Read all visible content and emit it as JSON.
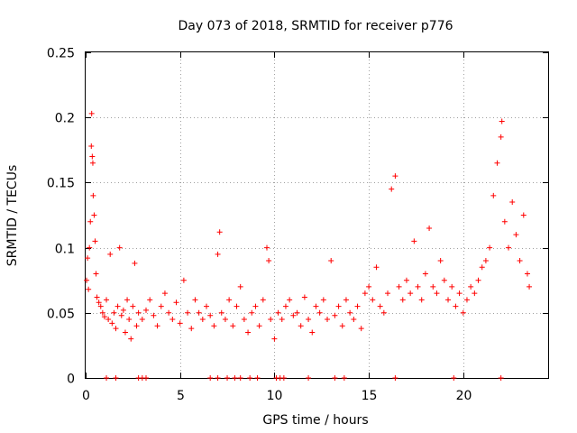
{
  "chart_data": {
    "type": "scatter",
    "title": "Day 073 of 2018, SRMTID for receiver p776",
    "xlabel": "GPS time / hours",
    "ylabel": "SRMTID / TECUs",
    "xlim": [
      0,
      24.5
    ],
    "ylim": [
      0,
      0.25
    ],
    "xticks": [
      0,
      5,
      10,
      15,
      20
    ],
    "yticks": [
      0,
      0.05,
      0.1,
      0.15,
      0.2,
      0.25
    ],
    "xtick_labels": [
      "0",
      "5",
      "10",
      "15",
      "20"
    ],
    "ytick_labels": [
      "0",
      "0.05",
      "0.1",
      "0.15",
      "0.2",
      "0.25"
    ],
    "grid": true,
    "marker": "+",
    "color": "#ff0000",
    "series": [
      {
        "name": "SRMTID",
        "points": [
          [
            0.05,
            0.075
          ],
          [
            0.1,
            0.092
          ],
          [
            0.15,
            0.068
          ],
          [
            0.2,
            0.1
          ],
          [
            0.25,
            0.12
          ],
          [
            0.3,
            0.178
          ],
          [
            0.32,
            0.203
          ],
          [
            0.35,
            0.17
          ],
          [
            0.38,
            0.165
          ],
          [
            0.4,
            0.14
          ],
          [
            0.45,
            0.125
          ],
          [
            0.5,
            0.105
          ],
          [
            0.55,
            0.08
          ],
          [
            0.6,
            0.062
          ],
          [
            0.7,
            0.058
          ],
          [
            0.8,
            0.055
          ],
          [
            0.9,
            0.05
          ],
          [
            1.0,
            0.047
          ],
          [
            1.1,
            0.06
          ],
          [
            1.2,
            0.045
          ],
          [
            1.3,
            0.095
          ],
          [
            1.4,
            0.042
          ],
          [
            1.5,
            0.05
          ],
          [
            1.6,
            0.038
          ],
          [
            1.7,
            0.055
          ],
          [
            1.8,
            0.1
          ],
          [
            1.9,
            0.048
          ],
          [
            2.0,
            0.052
          ],
          [
            2.1,
            0.035
          ],
          [
            2.2,
            0.06
          ],
          [
            2.3,
            0.045
          ],
          [
            2.4,
            0.03
          ],
          [
            2.5,
            0.055
          ],
          [
            2.6,
            0.088
          ],
          [
            2.7,
            0.04
          ],
          [
            2.8,
            0.05
          ],
          [
            3.0,
            0.045
          ],
          [
            3.2,
            0.052
          ],
          [
            3.4,
            0.06
          ],
          [
            3.6,
            0.048
          ],
          [
            3.8,
            0.04
          ],
          [
            4.0,
            0.055
          ],
          [
            4.2,
            0.065
          ],
          [
            4.4,
            0.05
          ],
          [
            4.6,
            0.045
          ],
          [
            4.8,
            0.058
          ],
          [
            5.0,
            0.042
          ],
          [
            5.2,
            0.075
          ],
          [
            5.4,
            0.05
          ],
          [
            5.6,
            0.038
          ],
          [
            5.8,
            0.06
          ],
          [
            6.0,
            0.05
          ],
          [
            6.2,
            0.045
          ],
          [
            6.4,
            0.055
          ],
          [
            6.6,
            0.048
          ],
          [
            6.8,
            0.04
          ],
          [
            7.0,
            0.095
          ],
          [
            7.1,
            0.112
          ],
          [
            7.2,
            0.05
          ],
          [
            7.4,
            0.045
          ],
          [
            7.6,
            0.06
          ],
          [
            7.8,
            0.04
          ],
          [
            8.0,
            0.055
          ],
          [
            8.2,
            0.07
          ],
          [
            8.4,
            0.045
          ],
          [
            8.6,
            0.035
          ],
          [
            8.8,
            0.05
          ],
          [
            9.0,
            0.055
          ],
          [
            9.2,
            0.04
          ],
          [
            9.4,
            0.06
          ],
          [
            9.6,
            0.1
          ],
          [
            9.7,
            0.09
          ],
          [
            9.8,
            0.045
          ],
          [
            10.0,
            0.03
          ],
          [
            10.2,
            0.05
          ],
          [
            10.4,
            0.045
          ],
          [
            10.6,
            0.055
          ],
          [
            10.8,
            0.06
          ],
          [
            11.0,
            0.048
          ],
          [
            11.2,
            0.05
          ],
          [
            11.4,
            0.04
          ],
          [
            11.6,
            0.062
          ],
          [
            11.8,
            0.045
          ],
          [
            12.0,
            0.035
          ],
          [
            12.2,
            0.055
          ],
          [
            12.4,
            0.05
          ],
          [
            12.6,
            0.06
          ],
          [
            12.8,
            0.045
          ],
          [
            13.0,
            0.09
          ],
          [
            13.2,
            0.048
          ],
          [
            13.4,
            0.055
          ],
          [
            13.6,
            0.04
          ],
          [
            13.8,
            0.06
          ],
          [
            14.0,
            0.05
          ],
          [
            14.2,
            0.045
          ],
          [
            14.4,
            0.055
          ],
          [
            14.6,
            0.038
          ],
          [
            14.8,
            0.065
          ],
          [
            15.0,
            0.07
          ],
          [
            15.2,
            0.06
          ],
          [
            15.4,
            0.085
          ],
          [
            15.6,
            0.055
          ],
          [
            15.8,
            0.05
          ],
          [
            16.0,
            0.065
          ],
          [
            16.2,
            0.145
          ],
          [
            16.4,
            0.155
          ],
          [
            16.6,
            0.07
          ],
          [
            16.8,
            0.06
          ],
          [
            17.0,
            0.075
          ],
          [
            17.2,
            0.065
          ],
          [
            17.4,
            0.105
          ],
          [
            17.6,
            0.07
          ],
          [
            17.8,
            0.06
          ],
          [
            18.0,
            0.08
          ],
          [
            18.2,
            0.115
          ],
          [
            18.4,
            0.07
          ],
          [
            18.6,
            0.065
          ],
          [
            18.8,
            0.09
          ],
          [
            19.0,
            0.075
          ],
          [
            19.2,
            0.06
          ],
          [
            19.4,
            0.07
          ],
          [
            19.6,
            0.055
          ],
          [
            19.8,
            0.065
          ],
          [
            20.0,
            0.05
          ],
          [
            20.2,
            0.06
          ],
          [
            20.4,
            0.07
          ],
          [
            20.6,
            0.065
          ],
          [
            20.8,
            0.075
          ],
          [
            21.0,
            0.085
          ],
          [
            21.2,
            0.09
          ],
          [
            21.4,
            0.1
          ],
          [
            21.6,
            0.14
          ],
          [
            21.8,
            0.165
          ],
          [
            22.0,
            0.185
          ],
          [
            22.05,
            0.197
          ],
          [
            22.2,
            0.12
          ],
          [
            22.4,
            0.1
          ],
          [
            22.6,
            0.135
          ],
          [
            22.8,
            0.11
          ],
          [
            23.0,
            0.09
          ],
          [
            23.2,
            0.125
          ],
          [
            23.4,
            0.08
          ],
          [
            23.5,
            0.07
          ]
        ]
      },
      {
        "name": "zero-baseline",
        "x": [
          1.1,
          1.6,
          2.8,
          3.0,
          3.2,
          6.6,
          7.0,
          7.5,
          7.9,
          8.2,
          8.7,
          9.1,
          10.1,
          10.3,
          10.5,
          11.8,
          13.2,
          13.7,
          16.4,
          19.5,
          22.0
        ],
        "y": 0
      }
    ]
  }
}
